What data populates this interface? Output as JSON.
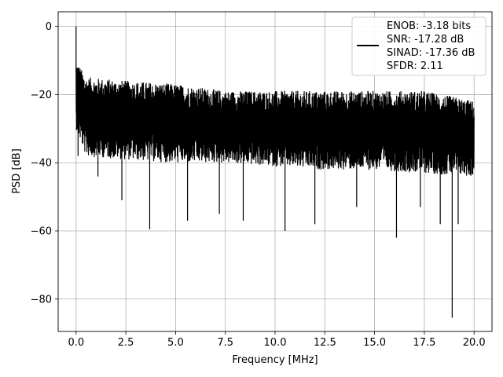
{
  "chart_data": {
    "type": "line",
    "xlabel": "Frequency [MHz]",
    "ylabel": "PSD [dB]",
    "xlim": [
      -0.9,
      20.9
    ],
    "ylim": [
      -89.5,
      4.3
    ],
    "x_ticks": [
      0.0,
      2.5,
      5.0,
      7.5,
      10.0,
      12.5,
      15.0,
      17.5,
      20.0
    ],
    "x_tick_labels": [
      "0.0",
      "2.5",
      "5.0",
      "7.5",
      "10.0",
      "12.5",
      "15.0",
      "17.5",
      "20.0"
    ],
    "y_ticks": [
      0,
      -20,
      -40,
      -60,
      -80
    ],
    "y_tick_labels": [
      "0",
      "−20",
      "−40",
      "−60",
      "−80"
    ],
    "grid": true,
    "legend_position": "top-right",
    "legend": [
      "ENOB: -3.18 bits",
      "SNR: -17.28 dB",
      "SINAD: -17.36 dB",
      "SFDR: 2.11"
    ],
    "series": [
      {
        "color": "#000000",
        "x_range": [
          0.0,
          20.0
        ],
        "peak": {
          "x": 0.0,
          "y": 0.0
        },
        "noise_band_top": [
          [
            0.0,
            -10
          ],
          [
            0.5,
            -15
          ],
          [
            2.5,
            -16
          ],
          [
            5.0,
            -17
          ],
          [
            7.5,
            -19
          ],
          [
            10.0,
            -19
          ],
          [
            12.5,
            -19
          ],
          [
            15.0,
            -19
          ],
          [
            17.5,
            -19
          ],
          [
            20.0,
            -22
          ]
        ],
        "noise_band_bottom": [
          [
            0.0,
            -30
          ],
          [
            0.5,
            -38
          ],
          [
            2.5,
            -39
          ],
          [
            5.0,
            -40
          ],
          [
            7.5,
            -40
          ],
          [
            10.0,
            -41
          ],
          [
            12.5,
            -42
          ],
          [
            15.0,
            -42
          ],
          [
            17.5,
            -43
          ],
          [
            20.0,
            -44
          ]
        ],
        "deep_notches": [
          [
            0.1,
            -38
          ],
          [
            1.1,
            -44
          ],
          [
            2.3,
            -51
          ],
          [
            3.7,
            -59.5
          ],
          [
            5.6,
            -57
          ],
          [
            7.2,
            -55
          ],
          [
            8.4,
            -57
          ],
          [
            10.5,
            -60
          ],
          [
            12.0,
            -58
          ],
          [
            14.1,
            -53
          ],
          [
            16.1,
            -62
          ],
          [
            17.3,
            -53
          ],
          [
            18.3,
            -58
          ],
          [
            18.9,
            -85.5
          ],
          [
            19.2,
            -58
          ]
        ]
      }
    ]
  }
}
